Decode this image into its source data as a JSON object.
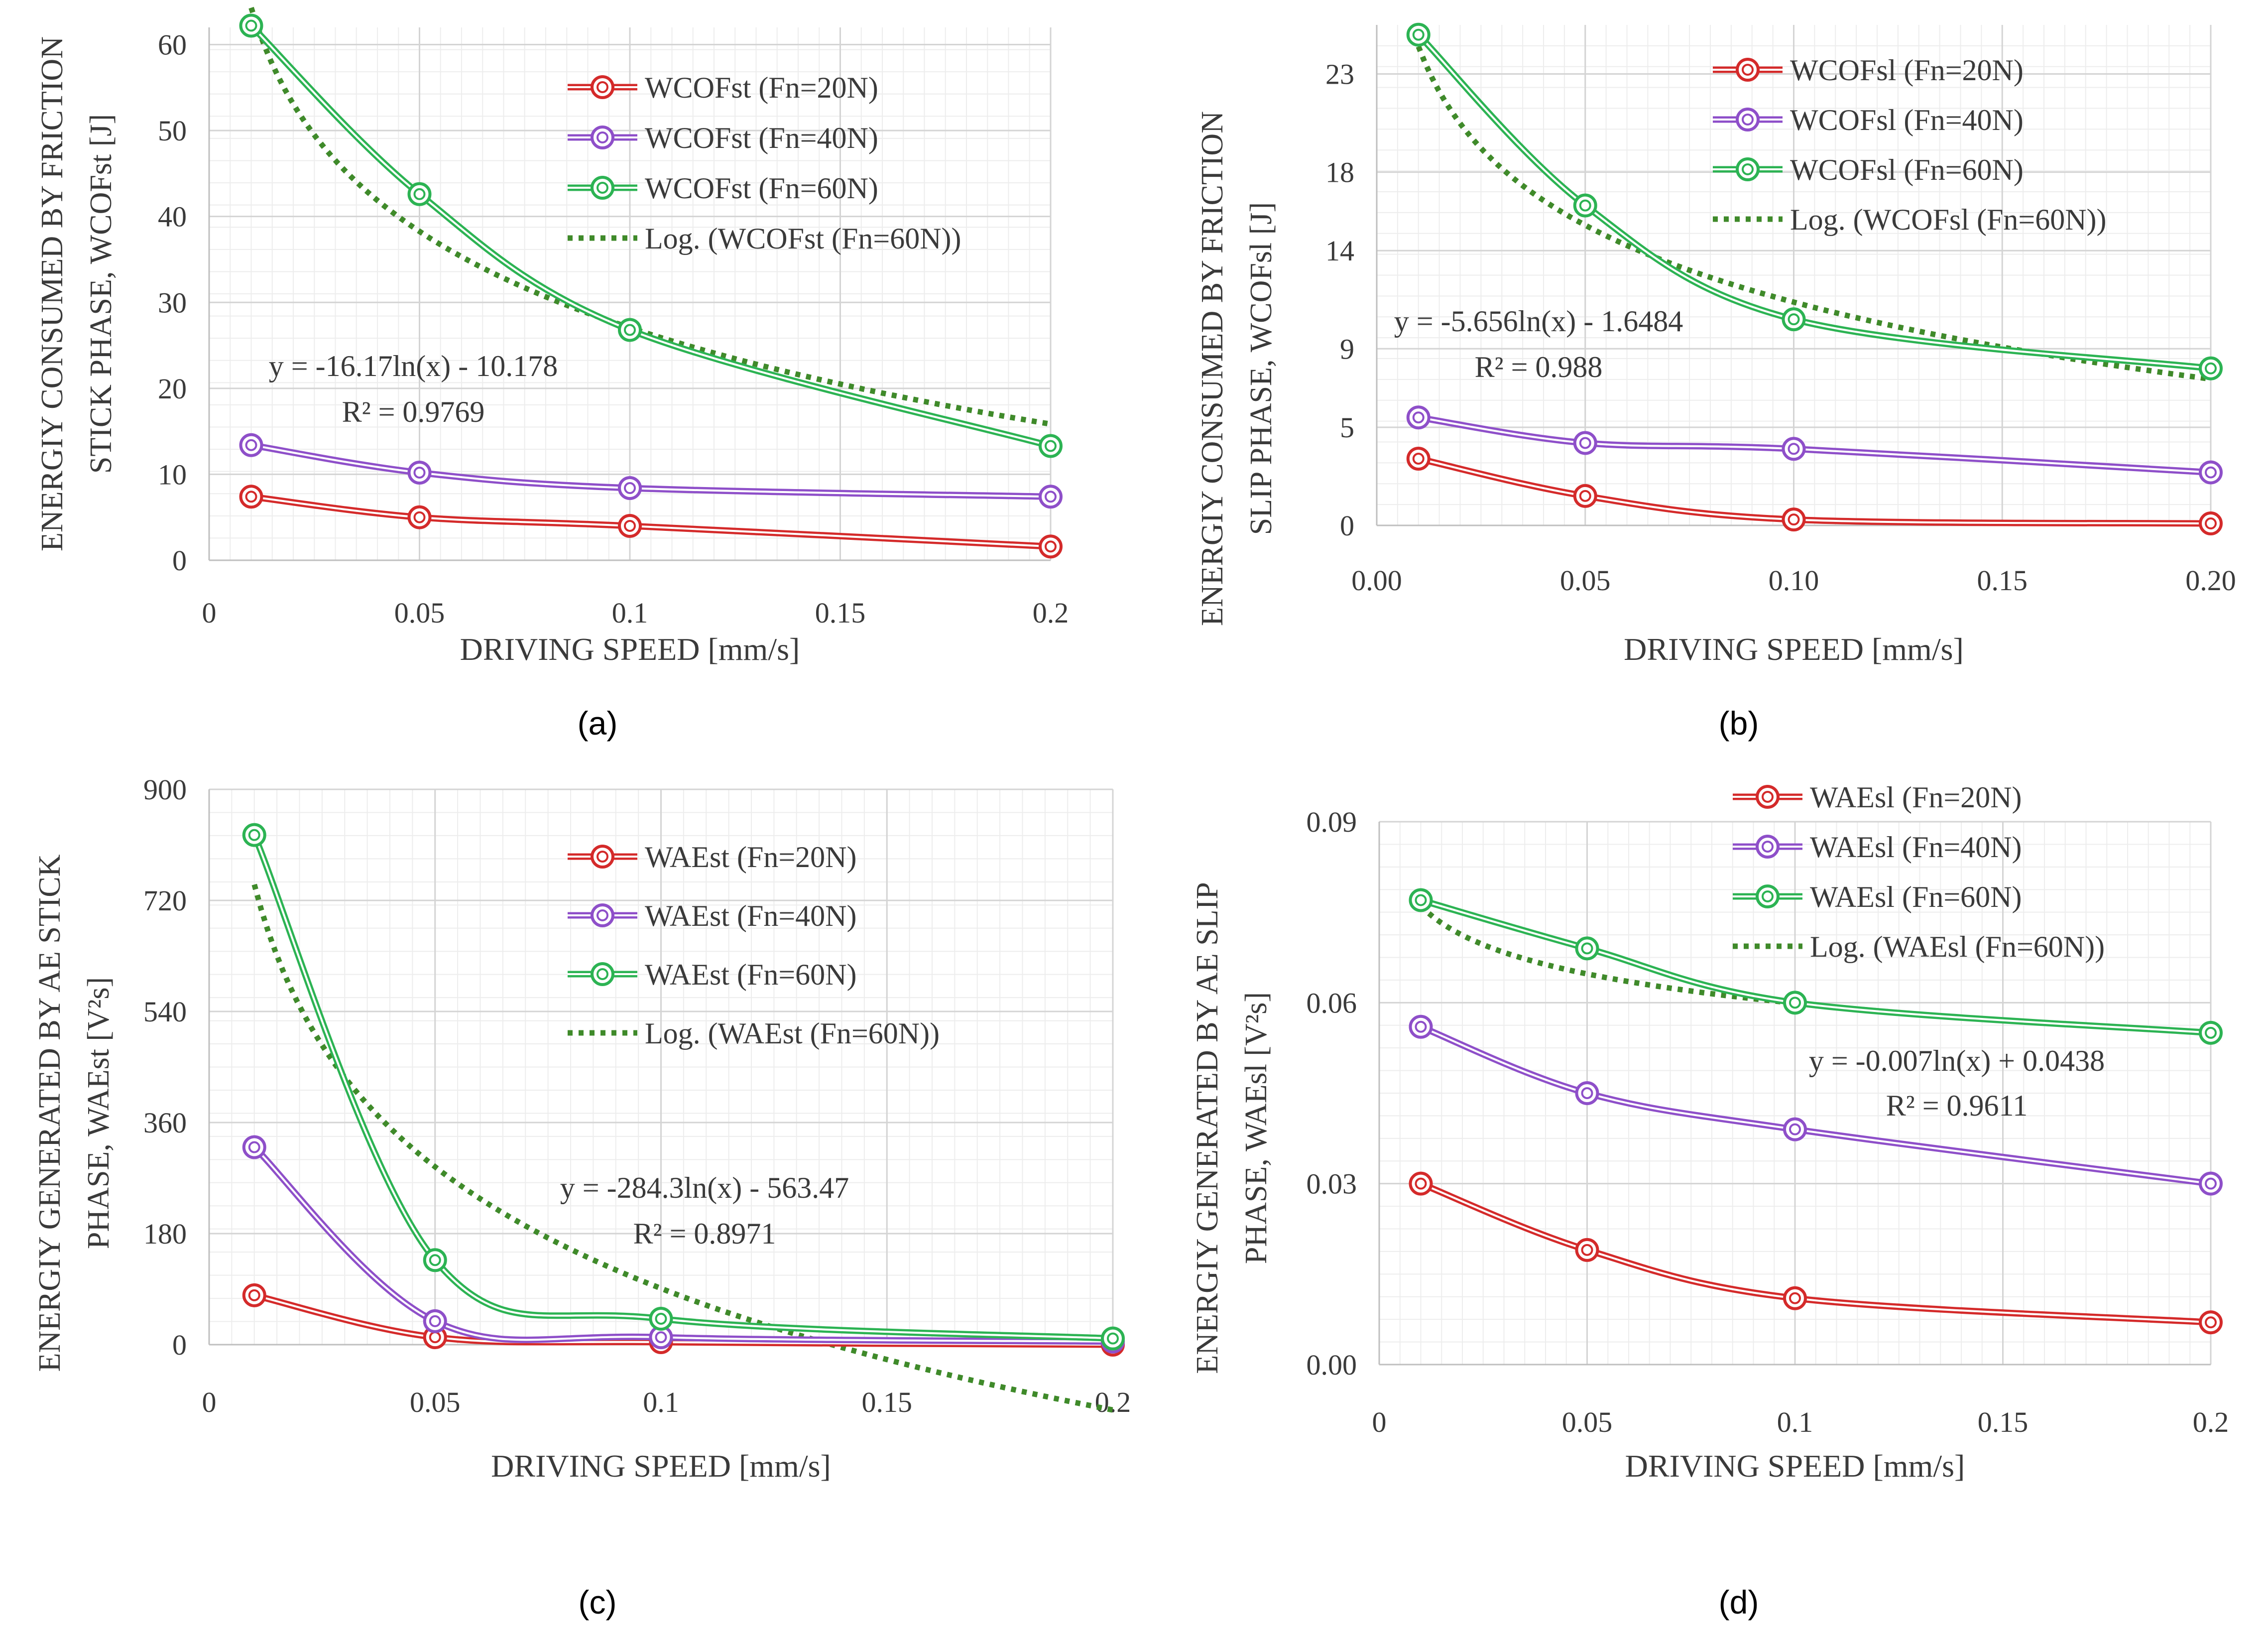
{
  "figure": {
    "captions": [
      "(a)",
      "(b)",
      "(c)",
      "(d)"
    ]
  },
  "chart_data": [
    {
      "id": "a",
      "type": "line",
      "panel_label": "(a)",
      "title": "",
      "xlabel": "DRIVING SPEED [mm/s]",
      "ylabel_lines": [
        "ENERGIY CONSUMED BY FRICTION",
        "STICK PHASE, WCOFst [J]"
      ],
      "x": [
        0.01,
        0.05,
        0.1,
        0.2
      ],
      "xlim": [
        0,
        0.2
      ],
      "ylim": [
        0,
        62
      ],
      "x_ticks": [
        0,
        0.05,
        0.1,
        0.15,
        0.2
      ],
      "x_tick_labels": [
        "0",
        "0.05",
        "0.1",
        "0.15",
        "0.2"
      ],
      "y_ticks": [
        0,
        10,
        20,
        30,
        40,
        50,
        60
      ],
      "y_tick_labels": [
        "0",
        "10",
        "20",
        "30",
        "40",
        "50",
        "60"
      ],
      "grid": true,
      "series": [
        {
          "name": "WCOFst (Fn=20N)",
          "color": "#d42a2a",
          "values": [
            7.4,
            5.0,
            4.0,
            1.6
          ]
        },
        {
          "name": "WCOFst (Fn=40N)",
          "color": "#8e4fc9",
          "values": [
            13.4,
            10.2,
            8.4,
            7.4
          ]
        },
        {
          "name": "WCOFst (Fn=60N)",
          "color": "#2cb353",
          "values": [
            62.2,
            42.6,
            26.8,
            13.3
          ]
        }
      ],
      "trendline": {
        "name": "Log. (WCOFst (Fn=60N))",
        "color": "#3f8a2a",
        "a": -16.17,
        "b": -10.178
      },
      "legend_position": "top-right",
      "equation": "y = -16.17ln(x) - 10.178",
      "r_squared": "R² = 0.9769"
    },
    {
      "id": "b",
      "type": "line",
      "panel_label": "(b)",
      "title": "",
      "xlabel": "DRIVING SPEED [mm/s]",
      "ylabel_lines": [
        "ENERGIY CONSUMED BY FRICTION",
        "SLIP PHASE, WCOFsl [J]"
      ],
      "x": [
        0.01,
        0.05,
        0.1,
        0.2
      ],
      "xlim": [
        0,
        0.2
      ],
      "ylim": [
        0,
        25.5
      ],
      "x_ticks": [
        0,
        0.05,
        0.1,
        0.15,
        0.2
      ],
      "x_tick_labels": [
        "0.00",
        "0.05",
        "0.10",
        "0.15",
        "0.20"
      ],
      "y_ticks": [
        0,
        5,
        9,
        14,
        18,
        23
      ],
      "y_tick_labels": [
        "0",
        "5",
        "9",
        "14",
        "18",
        "23"
      ],
      "grid": true,
      "series": [
        {
          "name": "WCOFsl (Fn=20N)",
          "color": "#d42a2a",
          "values": [
            3.4,
            1.5,
            0.3,
            0.1
          ]
        },
        {
          "name": "WCOFsl (Fn=40N)",
          "color": "#8e4fc9",
          "values": [
            5.5,
            4.2,
            3.9,
            2.7
          ]
        },
        {
          "name": "WCOFsl (Fn=60N)",
          "color": "#2cb353",
          "values": [
            25.0,
            16.3,
            10.5,
            8.0
          ]
        }
      ],
      "trendline": {
        "name": "Log. (WCOFsl (Fn=60N))",
        "color": "#3f8a2a",
        "a": -5.656,
        "b": -1.6484
      },
      "legend_position": "top-right",
      "equation": "y = -5.656ln(x) - 1.6484",
      "r_squared": "R² = 0.988"
    },
    {
      "id": "c",
      "type": "line",
      "panel_label": "(c)",
      "title": "",
      "xlabel": "DRIVING SPEED [mm/s]",
      "ylabel_lines": [
        "ENERGIY GENERATED BY AE STICK",
        "PHASE, WAEst [V²s]"
      ],
      "x": [
        0.01,
        0.05,
        0.1,
        0.2
      ],
      "xlim": [
        0,
        0.2
      ],
      "ylim": [
        0,
        900
      ],
      "x_ticks": [
        0,
        0.05,
        0.1,
        0.15,
        0.2
      ],
      "x_tick_labels": [
        "0",
        "0.05",
        "0.1",
        "0.15",
        "0.2"
      ],
      "y_ticks": [
        0,
        180,
        360,
        540,
        720,
        900
      ],
      "y_tick_labels": [
        "0",
        "180",
        "360",
        "540",
        "720",
        "900"
      ],
      "grid": true,
      "series": [
        {
          "name": "WAEst (Fn=20N)",
          "color": "#d42a2a",
          "values": [
            80,
            12,
            4,
            0
          ]
        },
        {
          "name": "WAEst (Fn=40N)",
          "color": "#8e4fc9",
          "values": [
            320,
            38,
            12,
            5
          ]
        },
        {
          "name": "WAEst (Fn=60N)",
          "color": "#2cb353",
          "values": [
            826,
            137,
            42,
            10
          ]
        }
      ],
      "trendline": {
        "name": "Log. (WAEst (Fn=60N))",
        "color": "#3f8a2a",
        "a": -284.3,
        "b": -563.47
      },
      "legend_position": "top-right",
      "equation": "y = -284.3ln(x) - 563.47",
      "r_squared": "R² = 0.8971"
    },
    {
      "id": "d",
      "type": "line",
      "panel_label": "(d)",
      "title": "",
      "xlabel": "DRIVING SPEED [mm/s]",
      "ylabel_lines": [
        "ENERGIY GENERATED BY AE SLIP",
        "PHASE, WAEsl [V²s]"
      ],
      "x": [
        0.01,
        0.05,
        0.1,
        0.2
      ],
      "xlim": [
        0,
        0.2
      ],
      "ylim": [
        0,
        0.09
      ],
      "x_ticks": [
        0,
        0.05,
        0.1,
        0.15,
        0.2
      ],
      "x_tick_labels": [
        "0",
        "0.05",
        "0.1",
        "0.15",
        "0.2"
      ],
      "y_ticks": [
        0,
        0.03,
        0.06,
        0.09
      ],
      "y_tick_labels": [
        "0.00",
        "0.03",
        "0.06",
        "0.09"
      ],
      "grid": true,
      "series": [
        {
          "name": "WAEsl (Fn=20N)",
          "color": "#d42a2a",
          "values": [
            0.03,
            0.019,
            0.011,
            0.007
          ]
        },
        {
          "name": "WAEsl (Fn=40N)",
          "color": "#8e4fc9",
          "values": [
            0.056,
            0.045,
            0.039,
            0.03
          ]
        },
        {
          "name": "WAEsl (Fn=60N)",
          "color": "#2cb353",
          "values": [
            0.077,
            0.069,
            0.06,
            0.055
          ]
        }
      ],
      "trendline": {
        "name": "Log. (WAEsl (Fn=60N))",
        "color": "#3f8a2a",
        "a": -0.007,
        "b": 0.0438
      },
      "legend_position": "top-right",
      "equation": "y = -0.007ln(x) + 0.0438",
      "r_squared": "R² = 0.9611"
    }
  ]
}
